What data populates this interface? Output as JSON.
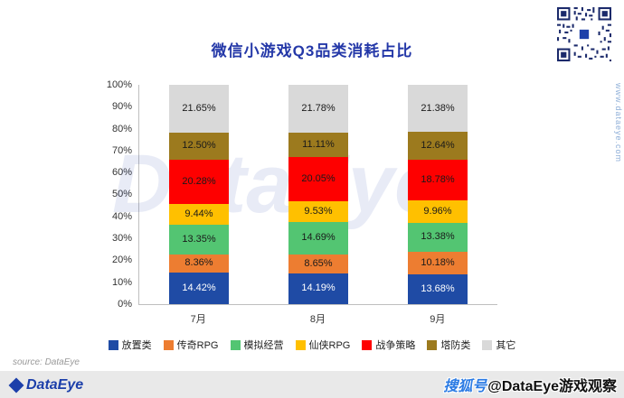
{
  "title": "微信小游戏Q3品类消耗占比",
  "chart_data": {
    "type": "bar",
    "stacked": true,
    "percent_stacked": true,
    "categories": [
      "7月",
      "8月",
      "9月"
    ],
    "series": [
      {
        "name": "放置类",
        "color": "#1f4ba5",
        "label_color": "#ffffff",
        "values": [
          14.42,
          14.19,
          13.68
        ]
      },
      {
        "name": "传奇RPG",
        "color": "#ed7d31",
        "label_color": "#1a1a1a",
        "values": [
          8.36,
          8.65,
          10.18
        ]
      },
      {
        "name": "模拟经营",
        "color": "#53c572",
        "label_color": "#1a1a1a",
        "values": [
          13.35,
          14.69,
          13.38
        ]
      },
      {
        "name": "仙侠RPG",
        "color": "#ffc000",
        "label_color": "#1a1a1a",
        "values": [
          9.44,
          9.53,
          9.96
        ]
      },
      {
        "name": "战争策略",
        "color": "#fe0000",
        "label_color": "#1a1a1a",
        "values": [
          20.28,
          20.05,
          18.78
        ]
      },
      {
        "name": "塔防类",
        "color": "#9c7a1e",
        "label_color": "#1a1a1a",
        "values": [
          12.5,
          11.11,
          12.64
        ]
      },
      {
        "name": "其它",
        "color": "#d9d9d9",
        "label_color": "#1a1a1a",
        "values": [
          21.65,
          21.78,
          21.38
        ]
      }
    ],
    "ylim": [
      0,
      100
    ],
    "yticks": [
      "100%",
      "90%",
      "80%",
      "70%",
      "60%",
      "50%",
      "40%",
      "30%",
      "20%",
      "10%",
      "0%"
    ],
    "legend_position": "bottom",
    "value_label_format": "0.00%"
  },
  "watermark": "DataEye",
  "source": "source: DataEye",
  "footer_logo": "DataEye",
  "side_url": "www.dataeye.com",
  "badge": {
    "prefix": "搜狐号",
    "handle": "@DataEye游戏观察"
  },
  "accent_colors": {
    "title_blue": "#2438a8",
    "logo_blue": "#1c3faa"
  }
}
